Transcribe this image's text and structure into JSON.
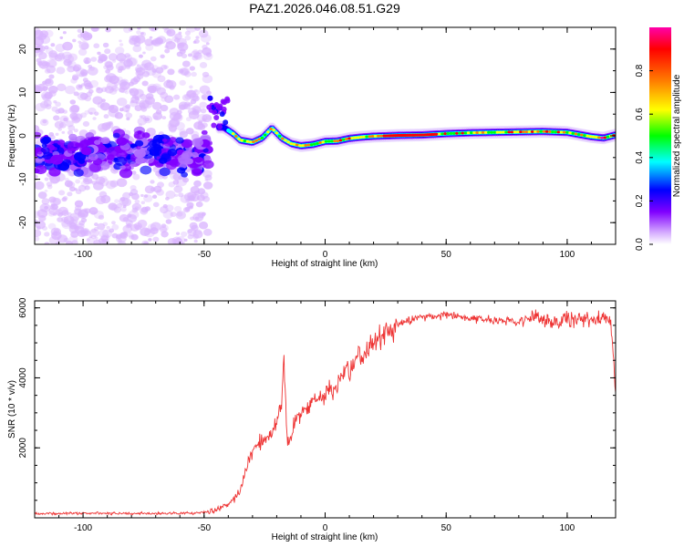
{
  "title": "PAZ1.2026.046.08.51.G29",
  "chart_data": [
    {
      "type": "heatmap",
      "name": "spectrogram",
      "xlabel": "Height of straight line (km)",
      "ylabel": "Frequency (Hz)",
      "xlim": [
        -120,
        120
      ],
      "ylim": [
        -25,
        25
      ],
      "xticks": [
        -100,
        -50,
        0,
        50,
        100
      ],
      "yticks": [
        -20,
        -10,
        0,
        10,
        20
      ],
      "colorbar": {
        "label": "Normalized spectral amplitude",
        "range": [
          0,
          1
        ],
        "ticks": [
          "0.0",
          "0.2",
          "0.4",
          "0.6",
          "0.8"
        ],
        "colors": [
          "#ffffff",
          "#d9b3ff",
          "#8000ff",
          "#0000ff",
          "#00ffff",
          "#00ff00",
          "#ffff00",
          "#ff8000",
          "#ff0000",
          "#ff00aa"
        ]
      },
      "ridge": {
        "x": [
          -42,
          -38,
          -35,
          -30,
          -26,
          -22,
          -18,
          -14,
          -10,
          -5,
          0,
          5,
          10,
          15,
          20,
          25,
          30,
          40,
          50,
          60,
          70,
          80,
          90,
          100,
          110,
          115,
          120
        ],
        "y": [
          2.0,
          0.5,
          -1.0,
          -1.5,
          -0.5,
          1.8,
          -0.5,
          -1.8,
          -2.3,
          -2.0,
          -1.3,
          -1.2,
          -0.6,
          -0.3,
          -0.1,
          0.0,
          0.1,
          0.2,
          0.5,
          0.7,
          0.8,
          0.9,
          1.0,
          0.8,
          -0.2,
          -0.5,
          0.2
        ]
      }
    },
    {
      "type": "line",
      "name": "snr",
      "xlabel": "Height of straight line (km)",
      "ylabel": "SNR (10 * v/v)",
      "xlim": [
        -120,
        120
      ],
      "ylim": [
        0,
        6200
      ],
      "xticks": [
        -100,
        -50,
        0,
        50,
        100
      ],
      "yticks": [
        2000,
        4000,
        6000
      ],
      "color": "#ee3333",
      "series": [
        {
          "name": "SNR",
          "x": [
            -120,
            -100,
            -80,
            -60,
            -50,
            -45,
            -40,
            -38,
            -35,
            -32,
            -30,
            -28,
            -25,
            -22,
            -20,
            -18,
            -17,
            -16,
            -15,
            -13,
            -10,
            -5,
            0,
            5,
            10,
            15,
            20,
            25,
            30,
            35,
            40,
            50,
            60,
            70,
            80,
            85,
            90,
            100,
            110,
            118,
            120
          ],
          "y": [
            120,
            130,
            120,
            130,
            150,
            250,
            400,
            500,
            800,
            1500,
            1900,
            2100,
            2200,
            2400,
            2800,
            3200,
            4500,
            2600,
            2100,
            2700,
            3000,
            3300,
            3500,
            3800,
            4200,
            4600,
            5000,
            5300,
            5500,
            5650,
            5750,
            5800,
            5700,
            5650,
            5600,
            5800,
            5600,
            5700,
            5650,
            5700,
            3500
          ]
        }
      ]
    }
  ]
}
